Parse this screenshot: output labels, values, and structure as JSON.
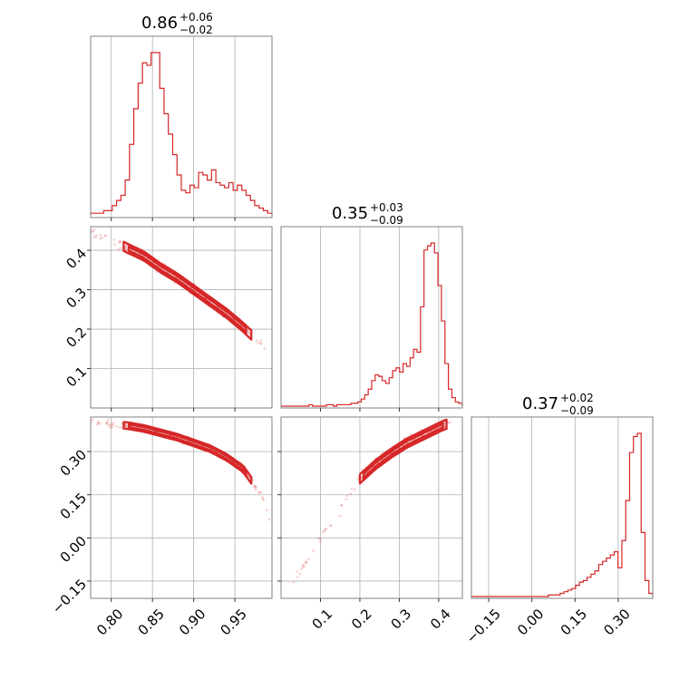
{
  "chart_data": {
    "type": "corner",
    "color": "#d62728",
    "params": [
      {
        "id": "p0",
        "range": [
          0.775,
          0.995
        ],
        "ticks": [
          0.8,
          0.85,
          0.9,
          0.95
        ],
        "tick_labels": [
          "0.80",
          "0.85",
          "0.90",
          "0.95"
        ],
        "title": {
          "median": "0.86",
          "plus": "+0.06",
          "minus": "−0.02"
        },
        "hist": [
          1,
          1,
          1,
          2,
          2,
          4,
          6,
          8,
          14,
          28,
          42,
          52,
          60,
          59,
          64,
          64,
          50,
          40,
          32,
          24,
          16,
          10,
          9,
          12,
          11,
          17,
          16,
          14,
          18,
          13,
          12,
          11,
          13,
          10,
          12,
          10,
          8,
          6,
          4,
          3,
          2,
          1
        ]
      },
      {
        "id": "p1",
        "range": [
          0.0,
          0.46
        ],
        "ticks": [
          0.1,
          0.2,
          0.3,
          0.4
        ],
        "tick_labels": [
          "0.1",
          "0.2",
          "0.3",
          "0.4"
        ],
        "title": {
          "median": "0.35",
          "plus": "+0.03",
          "minus": "−0.09"
        },
        "hist": [
          0,
          0,
          0,
          0,
          0,
          0,
          0,
          0,
          1,
          0,
          0,
          0,
          0,
          1,
          1,
          0,
          1,
          1,
          1,
          1,
          2,
          2,
          3,
          5,
          8,
          12,
          18,
          22,
          21,
          18,
          16,
          20,
          25,
          27,
          24,
          30,
          28,
          34,
          40,
          38,
          70,
          110,
          113,
          115,
          108,
          85,
          60,
          30,
          12,
          6,
          3,
          2
        ]
      },
      {
        "id": "p2",
        "range": [
          -0.21,
          0.42
        ],
        "ticks": [
          -0.15,
          0.0,
          0.15,
          0.3
        ],
        "tick_labels": [
          "−0.15",
          "0.00",
          "0.15",
          "0.30"
        ],
        "title": {
          "median": "0.37",
          "plus": "+0.02",
          "minus": "−0.09"
        },
        "hist": [
          0,
          0,
          0,
          0,
          0,
          0,
          0,
          0,
          0,
          0,
          0,
          0,
          0,
          0,
          0,
          0,
          0,
          0,
          0,
          0,
          1,
          1,
          1,
          2,
          3,
          4,
          5,
          7,
          9,
          10,
          12,
          14,
          16,
          20,
          22,
          24,
          26,
          28,
          18,
          35,
          60,
          90,
          100,
          102,
          40,
          10,
          2
        ]
      }
    ],
    "pairs": [
      {
        "x": 0,
        "y": 1,
        "ridge_x": [
          0.775,
          0.8,
          0.82,
          0.84,
          0.85,
          0.86,
          0.88,
          0.9,
          0.92,
          0.94,
          0.96,
          0.97,
          0.99
        ],
        "ridge_y": [
          0.445,
          0.425,
          0.405,
          0.385,
          0.37,
          0.355,
          0.33,
          0.3,
          0.27,
          0.24,
          0.205,
          0.185,
          0.14
        ],
        "core_x": [
          0.815,
          0.97
        ],
        "spread": 0.013
      },
      {
        "x": 0,
        "y": 2,
        "ridge_x": [
          0.775,
          0.8,
          0.82,
          0.84,
          0.86,
          0.88,
          0.9,
          0.92,
          0.94,
          0.96,
          0.97,
          0.985,
          0.995
        ],
        "ridge_y": [
          0.4,
          0.395,
          0.39,
          0.38,
          0.365,
          0.35,
          0.33,
          0.31,
          0.28,
          0.24,
          0.2,
          0.14,
          0.03
        ],
        "core_x": [
          0.815,
          0.97
        ],
        "spread": 0.013
      },
      {
        "x": 1,
        "y": 2,
        "ridge_x": [
          0.03,
          0.06,
          0.1,
          0.14,
          0.17,
          0.2,
          0.24,
          0.28,
          0.32,
          0.35,
          0.38,
          0.41,
          0.43
        ],
        "ridge_y": [
          -0.16,
          -0.09,
          0.0,
          0.08,
          0.15,
          0.205,
          0.255,
          0.295,
          0.33,
          0.35,
          0.37,
          0.39,
          0.4
        ],
        "core_x": [
          0.2,
          0.42
        ],
        "spread": 0.018
      }
    ]
  }
}
